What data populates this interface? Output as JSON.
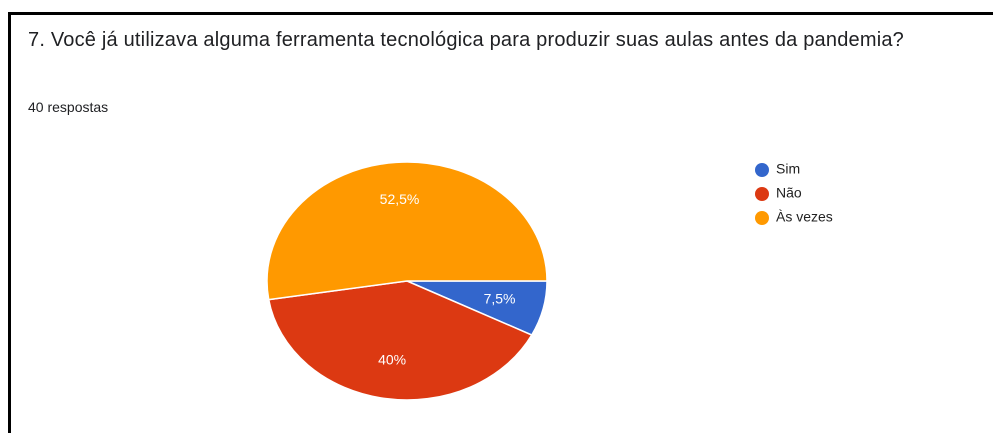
{
  "chart_data": {
    "type": "pie",
    "title": "7. Você já utilizava alguma ferramenta tecnológica para produzir suas aulas antes da pandemia?",
    "subtitle": "40 respostas",
    "categories": [
      "Sim",
      "Não",
      "Às vezes"
    ],
    "values": [
      7.5,
      40,
      52.5
    ],
    "value_labels": [
      "7,5%",
      "40%",
      "52,5%"
    ],
    "colors": [
      "#3366cc",
      "#dc3912",
      "#ff9900"
    ],
    "legend": "right"
  }
}
